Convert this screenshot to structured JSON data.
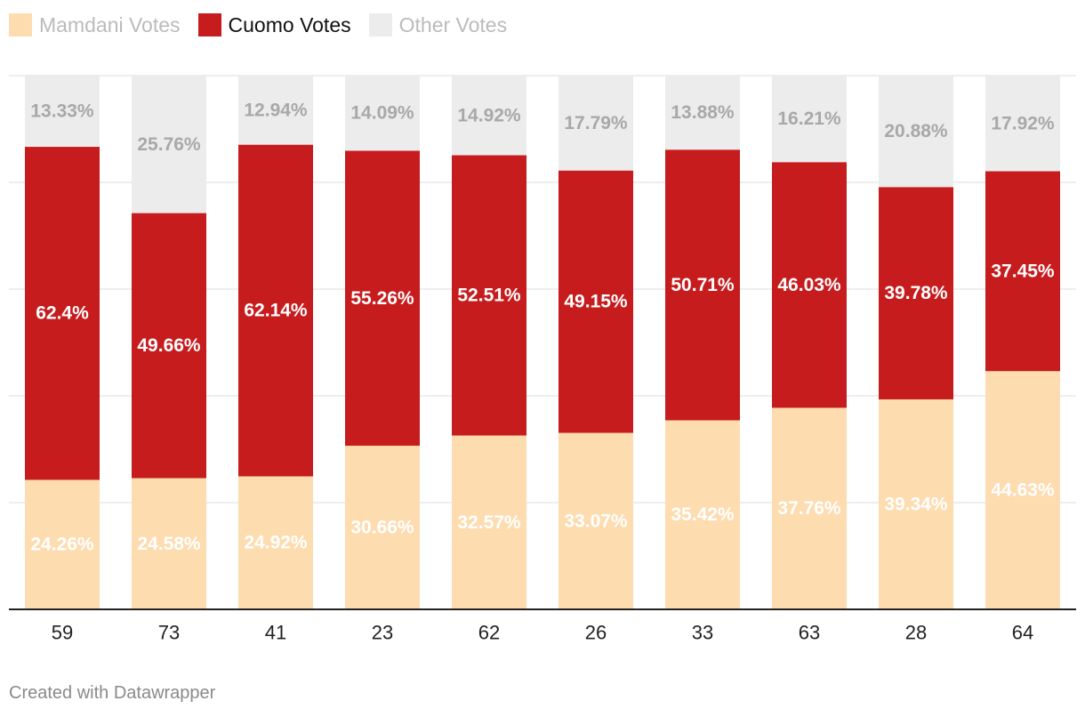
{
  "legend": [
    {
      "name": "Mamdani Votes",
      "color": "#fddcb0",
      "text_color": "#bbbbbb"
    },
    {
      "name": "Cuomo Votes",
      "color": "#c61c1e",
      "text_color": "#111111"
    },
    {
      "name": "Other Votes",
      "color": "#ececec",
      "text_color": "#bbbbbb"
    }
  ],
  "chart_data": {
    "type": "bar",
    "stacked": true,
    "categories": [
      "59",
      "73",
      "41",
      "23",
      "62",
      "26",
      "33",
      "63",
      "28",
      "64"
    ],
    "ylim": [
      0,
      100
    ],
    "grid": true,
    "legend_position": "top-left",
    "series": [
      {
        "name": "Mamdani Votes",
        "color": "#fddcb0",
        "label_color": "#ffffff",
        "values": [
          24.26,
          24.58,
          24.92,
          30.66,
          32.57,
          33.07,
          35.42,
          37.76,
          39.34,
          44.63
        ],
        "labels": [
          "24.26%",
          "24.58%",
          "24.92%",
          "30.66%",
          "32.57%",
          "33.07%",
          "35.42%",
          "37.76%",
          "39.34%",
          "44.63%"
        ]
      },
      {
        "name": "Cuomo Votes",
        "color": "#c61c1e",
        "label_color": "#ffffff",
        "values": [
          62.4,
          49.66,
          62.14,
          55.26,
          52.51,
          49.15,
          50.71,
          46.03,
          39.78,
          37.45
        ],
        "labels": [
          "62.4%",
          "49.66%",
          "62.14%",
          "55.26%",
          "52.51%",
          "49.15%",
          "50.71%",
          "46.03%",
          "39.78%",
          "37.45%"
        ]
      },
      {
        "name": "Other Votes",
        "color": "#ececec",
        "label_color": "#a8a8a8",
        "values": [
          13.33,
          25.76,
          12.94,
          14.09,
          14.92,
          17.79,
          13.88,
          16.21,
          20.88,
          17.92
        ],
        "labels": [
          "13.33%",
          "25.76%",
          "12.94%",
          "14.09%",
          "14.92%",
          "17.79%",
          "13.88%",
          "16.21%",
          "20.88%",
          "17.92%"
        ]
      }
    ]
  },
  "footer": {
    "credit": "Created with Datawrapper"
  }
}
